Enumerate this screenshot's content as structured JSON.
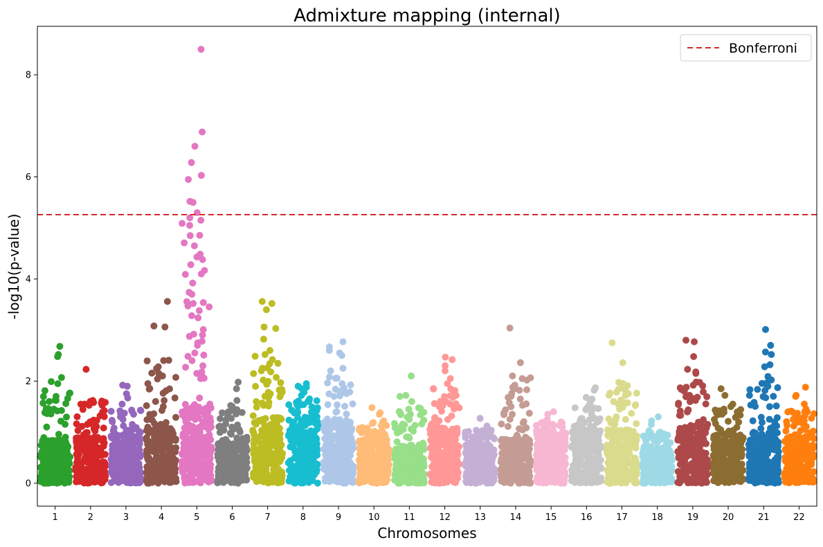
{
  "chart_data": {
    "type": "scatter",
    "title": "Admixture mapping (internal)",
    "xlabel": "Chromosomes",
    "ylabel": "-log10(p-value)",
    "ylim": [
      -0.45,
      8.95
    ],
    "y_ticks": [
      0,
      2,
      4,
      6,
      8
    ],
    "x_tick_labels": [
      "1",
      "2",
      "3",
      "4",
      "5",
      "6",
      "7",
      "8",
      "9",
      "10",
      "11",
      "12",
      "13",
      "14",
      "15",
      "16",
      "17",
      "18",
      "19",
      "20",
      "21",
      "22"
    ],
    "threshold": {
      "name": "Bonferroni",
      "value": 5.26,
      "color": "#d62728",
      "style": "dashed"
    },
    "legend": {
      "placement": "top-right",
      "entries": [
        "Bonferroni"
      ]
    },
    "grid": false,
    "chromosomes": [
      {
        "label": "1",
        "color": "#2ca02c",
        "max": 2.68,
        "dense_top": 0.85,
        "peaks": [
          2.68,
          2.52,
          2.48,
          2.07,
          1.99,
          1.95,
          1.62,
          1.45
        ]
      },
      {
        "label": "2",
        "color": "#d62728",
        "max": 2.23,
        "dense_top": 0.9,
        "peaks": [
          2.23,
          1.62,
          1.6,
          1.58,
          1.55,
          1.2,
          1.15
        ]
      },
      {
        "label": "3",
        "color": "#9467bd",
        "max": 1.92,
        "dense_top": 0.95,
        "peaks": [
          1.92,
          1.9,
          1.75,
          1.67,
          1.55,
          1.3,
          1.25,
          1.02
        ]
      },
      {
        "label": "4",
        "color": "#8c564b",
        "max": 3.56,
        "dense_top": 1.1,
        "peaks": [
          3.56,
          3.08,
          3.06,
          2.28,
          2.15,
          2.1,
          1.62,
          1.6,
          1.5
        ]
      },
      {
        "label": "5",
        "color": "#e377c2",
        "max": 8.5,
        "dense_top": 1.5,
        "peaks": [
          8.5,
          6.88,
          6.6,
          6.28,
          6.03,
          5.95,
          5.52,
          5.5,
          5.3,
          5.2,
          5.15,
          5.05,
          4.85,
          4.65,
          4.38,
          4.28,
          4.1,
          3.92,
          3.7,
          3.52,
          3.38,
          3.28,
          3.24,
          2.92,
          2.78,
          2.75,
          2.55,
          2.4,
          2.3,
          2.15,
          2.1,
          2.05
        ]
      },
      {
        "label": "6",
        "color": "#7f7f7f",
        "max": 1.98,
        "dense_top": 0.85,
        "peaks": [
          1.98,
          1.85,
          1.62,
          1.52,
          1.5,
          1.42,
          1.38,
          1.27
        ]
      },
      {
        "label": "7",
        "color": "#bcbd22",
        "max": 3.56,
        "dense_top": 1.3,
        "peaks": [
          3.56,
          3.52,
          3.4,
          3.06,
          3.03,
          2.82,
          2.6,
          2.52,
          2.42,
          2.34,
          2.25,
          2.18,
          2.02,
          1.95,
          1.78,
          1.75
        ]
      },
      {
        "label": "8",
        "color": "#17becf",
        "max": 1.95,
        "dense_top": 1.3,
        "peaks": [
          1.95,
          1.9,
          1.88,
          1.85,
          1.78,
          1.72,
          1.6
        ]
      },
      {
        "label": "9",
        "color": "#aec7e8",
        "max": 2.77,
        "dense_top": 1.2,
        "peaks": [
          2.77,
          2.67,
          2.6,
          2.55,
          2.5,
          2.25,
          2.2,
          2.08,
          1.95,
          1.82,
          1.7
        ]
      },
      {
        "label": "10",
        "color": "#ffbb78",
        "max": 1.48,
        "dense_top": 0.85,
        "peaks": [
          1.48,
          1.38,
          1.35,
          1.22,
          1.2,
          0.95,
          0.92
        ]
      },
      {
        "label": "11",
        "color": "#98df8a",
        "max": 2.1,
        "dense_top": 0.75,
        "peaks": [
          2.1,
          1.72,
          1.7,
          1.6,
          1.45,
          1.38,
          1.35,
          1.25,
          1.05
        ]
      },
      {
        "label": "12",
        "color": "#ff9896",
        "max": 2.47,
        "dense_top": 1.1,
        "peaks": [
          2.47,
          2.42,
          2.3,
          2.2,
          2.05,
          1.95,
          1.72,
          1.68,
          1.6,
          1.55
        ]
      },
      {
        "label": "13",
        "color": "#c5b0d5",
        "max": 1.27,
        "dense_top": 0.8,
        "peaks": [
          1.27,
          1.12,
          0.98,
          0.95,
          0.9
        ]
      },
      {
        "label": "14",
        "color": "#c49c94",
        "max": 3.04,
        "dense_top": 0.9,
        "peaks": [
          3.04,
          2.36,
          2.1,
          1.92,
          1.82,
          1.68,
          1.65,
          1.5,
          1.35
        ]
      },
      {
        "label": "15",
        "color": "#f7b6d2",
        "max": 1.4,
        "dense_top": 0.95,
        "peaks": [
          1.4,
          1.35,
          1.25,
          1.2,
          1.15
        ]
      },
      {
        "label": "16",
        "color": "#c7c7c7",
        "max": 1.87,
        "dense_top": 1.05,
        "peaks": [
          1.87,
          1.82,
          1.68,
          1.65,
          1.6,
          1.55,
          1.5,
          1.45
        ]
      },
      {
        "label": "17",
        "color": "#dbdb8d",
        "max": 2.75,
        "dense_top": 1.05,
        "peaks": [
          2.75,
          2.36,
          1.87,
          1.78,
          1.72,
          1.6,
          1.55,
          1.45,
          1.3
        ]
      },
      {
        "label": "18",
        "color": "#9edae5",
        "max": 1.3,
        "dense_top": 0.7,
        "peaks": [
          1.3,
          1.22,
          1.15,
          1.0,
          0.95,
          0.9
        ]
      },
      {
        "label": "19",
        "color": "#ad494a",
        "max": 2.8,
        "dense_top": 1.1,
        "peaks": [
          2.8,
          2.77,
          2.48,
          2.23,
          2.18,
          2.15,
          1.92,
          1.88,
          1.8,
          1.72,
          1.62
        ]
      },
      {
        "label": "20",
        "color": "#8c6d31",
        "max": 1.85,
        "dense_top": 0.95,
        "peaks": [
          1.85,
          1.72,
          1.55,
          1.5,
          1.45,
          1.35
        ]
      },
      {
        "label": "21",
        "color": "#1f77b4",
        "max": 3.01,
        "dense_top": 1.0,
        "peaks": [
          3.01,
          2.7,
          2.57,
          2.52,
          2.32,
          2.28,
          2.05,
          2.02,
          1.95,
          1.9,
          1.5,
          1.2
        ]
      },
      {
        "label": "22",
        "color": "#ff7f0e",
        "max": 1.88,
        "dense_top": 0.95,
        "peaks": [
          1.88,
          1.72,
          1.7,
          1.55,
          1.45,
          1.28,
          1.25
        ]
      }
    ]
  }
}
